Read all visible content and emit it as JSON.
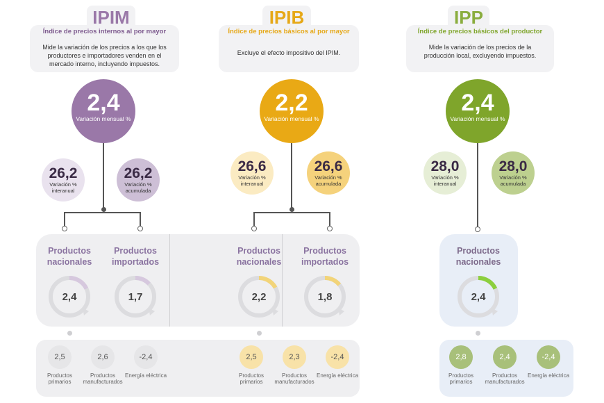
{
  "columns": [
    {
      "name": "IPIM",
      "subtitle": "Índice de precios internos al por mayor",
      "description": "Mide la variación de los precios a los que los productores e importadores venden en el mercado interno, incluyendo impuestos.",
      "monthly": {
        "value": "2,4",
        "label": "Variación mensual %"
      },
      "interannual": {
        "value": "26,2",
        "label": "Variación % interanual"
      },
      "accumulated": {
        "value": "26,2",
        "label": "Variación % acumulada"
      },
      "products": [
        {
          "label": "Productos nacionales",
          "value": "2,4",
          "fraction": 0.18
        },
        {
          "label": "Productos importados",
          "value": "1,7",
          "fraction": 0.13
        }
      ],
      "sub": [
        {
          "value": "2,5",
          "label": "Productos primarios"
        },
        {
          "value": "2,6",
          "label": "Productos manufacturados"
        },
        {
          "value": "-2,4",
          "label": "Energía eléctrica"
        }
      ],
      "colors": {
        "main": "#9a78a8",
        "title": "#9a78a8",
        "subtitle": "#7d5a8e",
        "light1": "#e9e2ee",
        "light2": "#cdbfd6",
        "gauge": "#d6c8de",
        "sub": "#e6e6e8",
        "panel": "#efeff1"
      }
    },
    {
      "name": "IPIB",
      "subtitle": "Índice de precios básicos al por mayor",
      "description": "Excluye el efecto impositivo del IPIM.",
      "monthly": {
        "value": "2,2",
        "label": "Variación mensual %"
      },
      "interannual": {
        "value": "26,6",
        "label": "Variación % interanual"
      },
      "accumulated": {
        "value": "26,6",
        "label": "Variación % acumulada"
      },
      "products": [
        {
          "label": "Productos nacionales",
          "value": "2,2",
          "fraction": 0.17
        },
        {
          "label": "Productos importados",
          "value": "1,8",
          "fraction": 0.14
        }
      ],
      "sub": [
        {
          "value": "2,5",
          "label": "Productos primarios"
        },
        {
          "value": "2,3",
          "label": "Productos manufacturados"
        },
        {
          "value": "-2,4",
          "label": "Energía eléctrica"
        }
      ],
      "colors": {
        "main": "#e9a915",
        "title": "#e6a817",
        "subtitle": "#e6a817",
        "light1": "#fbebc2",
        "light2": "#f5d27c",
        "gauge": "#f2d479",
        "sub": "#f8e2a8",
        "panel": "#efeff1"
      }
    },
    {
      "name": "IPP",
      "subtitle": "Índice de precios básicos del productor",
      "description": "Mide la variación de los precios de la producción local, excluyendo impuestos.",
      "monthly": {
        "value": "2,4",
        "label": "Variación mensual %"
      },
      "interannual": {
        "value": "28,0",
        "label": "Variación % interanual"
      },
      "accumulated": {
        "value": "28,0",
        "label": "Variación % acumulada"
      },
      "products": [
        {
          "label": "Productos nacionales",
          "value": "2,4",
          "fraction": 0.18
        }
      ],
      "sub": [
        {
          "value": "2,8",
          "label": "Productos primarios"
        },
        {
          "value": "2,4",
          "label": "Productos manufacturados"
        },
        {
          "value": "-2,4",
          "label": "Energía eléctrica"
        }
      ],
      "colors": {
        "main": "#7fa52b",
        "title": "#8aad3e",
        "subtitle": "#7fa52b",
        "light1": "#e6eed6",
        "light2": "#bdd08f",
        "gauge": "#8ccf3e",
        "sub": "#a8c07a",
        "panel": "#e8eef7"
      }
    }
  ]
}
